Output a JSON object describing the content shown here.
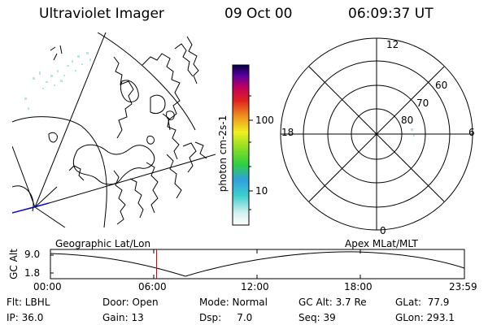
{
  "header": {
    "title": "Ultraviolet Imager",
    "date": "09 Oct 00",
    "time": "06:09:37 UT"
  },
  "colorbar": {
    "label": "photon cm-2s-1",
    "ticks": [
      "100",
      "10"
    ]
  },
  "polar": {
    "hour_labels": {
      "top": "12",
      "left": "18",
      "right": "6",
      "bottom": "0"
    },
    "lat_labels": [
      "60",
      "70",
      "80"
    ]
  },
  "timeline": {
    "ylabel": "GC Alt",
    "yticks": [
      "9.0",
      "1.8"
    ],
    "left_title": "Geographic Lat/Lon",
    "right_title": "Apex MLat/MLT",
    "xticks": [
      "00:00",
      "06:00",
      "12:00",
      "18:00",
      "23:59"
    ],
    "current_time_fraction": 0.2564
  },
  "info": {
    "flt": "Flt: LBHL",
    "ip": "IP: 36.0",
    "door": "Door: Open",
    "gain": "Gain: 13",
    "mode": "Mode: Normal",
    "dsp": "Dsp:     7.0",
    "gcalt": "GC Alt: 3.7 Re",
    "seq": "Seq: 39",
    "glat": "GLat:  77.9",
    "glon": "GLon: 293.1"
  },
  "colors": {
    "cursor": "#e00000",
    "emission": "#b8e4e8",
    "track": "#1010c0"
  }
}
